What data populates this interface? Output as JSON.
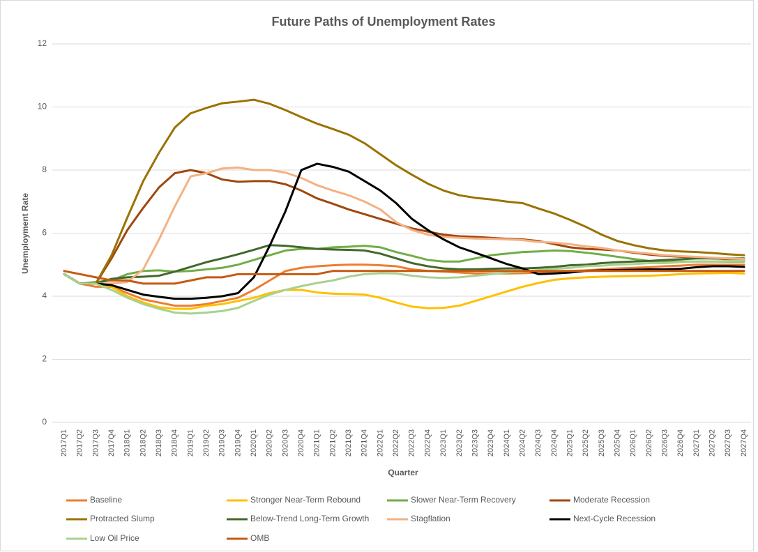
{
  "chart_data": {
    "type": "line",
    "title": "Future Paths of Unemployment Rates",
    "x_label": "Quarter",
    "y_label": "Unemployment Rate",
    "categories": [
      "2017Q1",
      "2017Q2",
      "2017Q3",
      "2017Q4",
      "2018Q1",
      "2018Q2",
      "2018Q3",
      "2018Q4",
      "2019Q1",
      "2019Q2",
      "2019Q3",
      "2019Q4",
      "2020Q1",
      "2020Q2",
      "2020Q3",
      "2020Q4",
      "2021Q1",
      "2021Q2",
      "2021Q3",
      "2021Q4",
      "2022Q1",
      "2022Q2",
      "2022Q3",
      "2022Q4",
      "2023Q1",
      "2023Q2",
      "2023Q3",
      "2023Q4",
      "2024Q1",
      "2024Q2",
      "2024Q3",
      "2024Q4",
      "2025Q1",
      "2025Q2",
      "2025Q3",
      "2025Q4",
      "2026Q1",
      "2026Q2",
      "2026Q3",
      "2026Q4",
      "2027Q1",
      "2027Q2",
      "2027Q3",
      "2027Q4"
    ],
    "ylim": [
      0,
      12
    ],
    "yticks": [
      0,
      2,
      4,
      6,
      8,
      10,
      12
    ],
    "grid": true,
    "legend": "bottom",
    "series": [
      {
        "name": "Baseline",
        "color": "#ed7d31",
        "values": [
          4.7,
          4.4,
          4.3,
          4.3,
          4.1,
          3.9,
          3.8,
          3.7,
          3.7,
          3.75,
          3.85,
          3.95,
          4.2,
          4.5,
          4.8,
          4.9,
          4.95,
          4.98,
          5.0,
          5.0,
          4.98,
          4.95,
          4.85,
          4.8,
          4.78,
          4.75,
          4.72,
          4.72,
          4.72,
          4.73,
          4.75,
          4.78,
          4.8,
          4.82,
          4.85,
          4.88,
          4.9,
          4.92,
          4.95,
          4.97,
          5.0,
          5.0,
          5.0,
          5.0
        ]
      },
      {
        "name": "Stronger Near-Term Rebound",
        "color": "#ffc000",
        "values": [
          4.7,
          4.4,
          4.4,
          4.3,
          4.0,
          3.8,
          3.65,
          3.6,
          3.6,
          3.7,
          3.75,
          3.85,
          3.95,
          4.1,
          4.2,
          4.2,
          4.12,
          4.08,
          4.07,
          4.05,
          3.95,
          3.8,
          3.67,
          3.62,
          3.63,
          3.7,
          3.85,
          4.0,
          4.15,
          4.3,
          4.42,
          4.52,
          4.57,
          4.6,
          4.62,
          4.63,
          4.64,
          4.65,
          4.67,
          4.7,
          4.72,
          4.73,
          4.74,
          4.72
        ]
      },
      {
        "name": "Slower Near-Term Recovery",
        "color": "#70ad47",
        "values": [
          4.7,
          4.4,
          4.45,
          4.5,
          4.7,
          4.8,
          4.82,
          4.78,
          4.8,
          4.85,
          4.9,
          5.0,
          5.15,
          5.3,
          5.45,
          5.5,
          5.5,
          5.55,
          5.57,
          5.6,
          5.55,
          5.4,
          5.28,
          5.15,
          5.1,
          5.1,
          5.2,
          5.3,
          5.35,
          5.4,
          5.42,
          5.45,
          5.43,
          5.38,
          5.32,
          5.25,
          5.18,
          5.12,
          5.1,
          5.1,
          5.1,
          5.1,
          5.1,
          5.1
        ]
      },
      {
        "name": "Moderate Recession",
        "color": "#9e480e",
        "values": [
          4.7,
          4.4,
          4.4,
          5.2,
          6.1,
          6.8,
          7.45,
          7.9,
          8.0,
          7.9,
          7.7,
          7.63,
          7.65,
          7.65,
          7.55,
          7.35,
          7.1,
          6.93,
          6.75,
          6.6,
          6.45,
          6.3,
          6.15,
          6.05,
          5.95,
          5.9,
          5.88,
          5.85,
          5.82,
          5.8,
          5.75,
          5.65,
          5.55,
          5.5,
          5.48,
          5.45,
          5.38,
          5.32,
          5.28,
          5.25,
          5.22,
          5.2,
          5.18,
          5.15
        ]
      },
      {
        "name": "Protracted Slump",
        "color": "#997300",
        "values": [
          4.7,
          4.4,
          4.4,
          5.3,
          6.5,
          7.65,
          8.55,
          9.35,
          9.8,
          9.97,
          10.12,
          10.17,
          10.23,
          10.1,
          9.9,
          9.68,
          9.47,
          9.3,
          9.12,
          8.85,
          8.5,
          8.15,
          7.85,
          7.57,
          7.35,
          7.2,
          7.12,
          7.07,
          7.0,
          6.95,
          6.78,
          6.62,
          6.42,
          6.2,
          5.95,
          5.75,
          5.62,
          5.52,
          5.45,
          5.42,
          5.4,
          5.37,
          5.33,
          5.3
        ]
      },
      {
        "name": "Below-Trend Long-Term Growth",
        "color": "#43682b",
        "values": [
          4.7,
          4.4,
          4.4,
          4.55,
          4.6,
          4.62,
          4.65,
          4.78,
          4.93,
          5.08,
          5.2,
          5.33,
          5.47,
          5.62,
          5.6,
          5.55,
          5.5,
          5.48,
          5.47,
          5.45,
          5.35,
          5.2,
          5.05,
          4.95,
          4.88,
          4.85,
          4.85,
          4.87,
          4.88,
          4.88,
          4.9,
          4.93,
          4.98,
          5.0,
          5.05,
          5.08,
          5.1,
          5.12,
          5.15,
          5.17,
          5.2,
          5.2,
          5.2,
          5.2
        ]
      },
      {
        "name": "Stagflation",
        "color": "#f4b183",
        "values": [
          4.7,
          4.4,
          4.4,
          4.4,
          4.45,
          4.85,
          5.8,
          6.85,
          7.8,
          7.9,
          8.05,
          8.08,
          8.0,
          8.0,
          7.92,
          7.75,
          7.52,
          7.35,
          7.2,
          7.0,
          6.75,
          6.35,
          6.1,
          5.95,
          5.88,
          5.85,
          5.83,
          5.82,
          5.8,
          5.78,
          5.72,
          5.7,
          5.65,
          5.58,
          5.53,
          5.45,
          5.4,
          5.35,
          5.3,
          5.27,
          5.25,
          5.22,
          5.2,
          5.18
        ]
      },
      {
        "name": "Next-Cycle Recession",
        "color": "#000000",
        "values": [
          4.7,
          4.4,
          4.4,
          4.35,
          4.2,
          4.05,
          3.98,
          3.92,
          3.92,
          3.95,
          4.0,
          4.1,
          4.6,
          5.6,
          6.7,
          8.0,
          8.2,
          8.1,
          7.95,
          7.65,
          7.35,
          6.95,
          6.45,
          6.1,
          5.8,
          5.55,
          5.38,
          5.2,
          5.02,
          4.88,
          4.7,
          4.72,
          4.75,
          4.8,
          4.82,
          4.83,
          4.84,
          4.85,
          4.85,
          4.87,
          4.92,
          4.95,
          4.95,
          4.93
        ]
      },
      {
        "name": "Low Oil Price",
        "color": "#a9d18e",
        "values": [
          4.7,
          4.4,
          4.4,
          4.2,
          3.95,
          3.75,
          3.6,
          3.48,
          3.45,
          3.48,
          3.53,
          3.63,
          3.85,
          4.05,
          4.2,
          4.32,
          4.42,
          4.5,
          4.62,
          4.7,
          4.73,
          4.72,
          4.65,
          4.6,
          4.58,
          4.6,
          4.65,
          4.7,
          4.75,
          4.78,
          4.83,
          4.87,
          4.9,
          4.95,
          4.97,
          5.0,
          5.02,
          5.05,
          5.05,
          5.08,
          5.1,
          5.1,
          5.12,
          5.12
        ]
      },
      {
        "name": "OMB",
        "color": "#c55a11",
        "values": [
          4.8,
          4.7,
          4.6,
          4.5,
          4.5,
          4.4,
          4.4,
          4.4,
          4.5,
          4.6,
          4.6,
          4.7,
          4.7,
          4.7,
          4.7,
          4.7,
          4.7,
          4.8,
          4.8,
          4.8,
          4.8,
          4.8,
          4.8,
          4.8,
          4.8,
          4.8,
          4.8,
          4.8,
          4.8,
          4.8,
          4.8,
          4.8,
          4.8,
          4.8,
          4.8,
          4.8,
          4.8,
          4.8,
          4.8,
          4.8,
          4.8,
          4.8,
          4.8,
          4.8
        ]
      }
    ]
  }
}
